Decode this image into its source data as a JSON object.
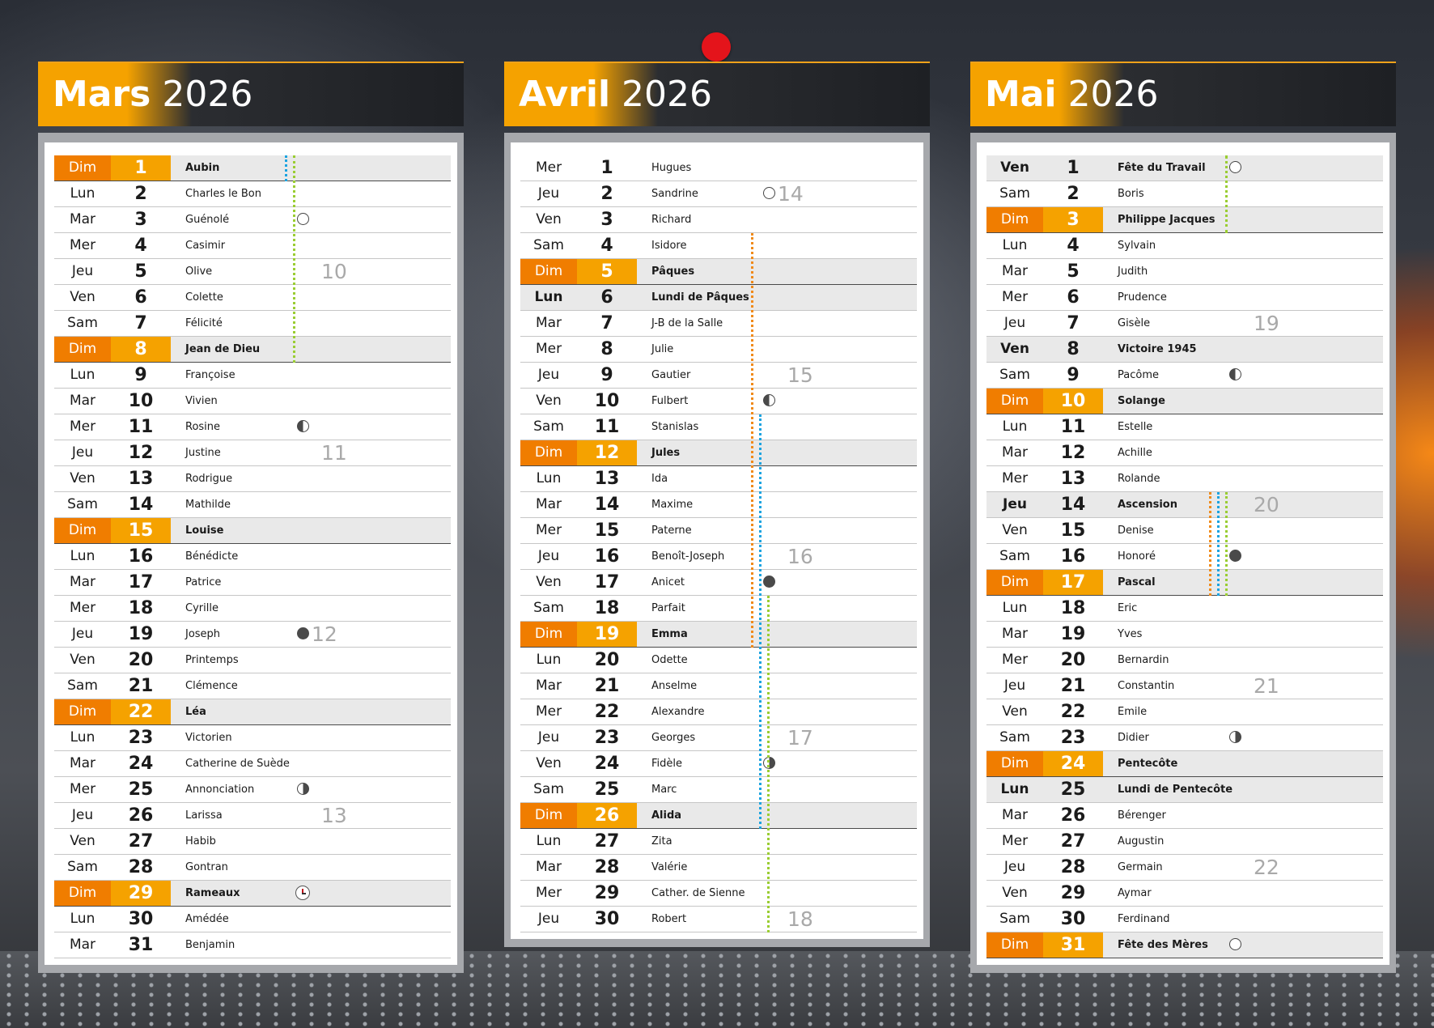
{
  "months": [
    {
      "name": "Mars",
      "year": "2026",
      "rows": [
        {
          "d": "Dim",
          "n": "1",
          "s": "Aubin",
          "sun": true
        },
        {
          "d": "Lun",
          "n": "2",
          "s": "Charles le Bon"
        },
        {
          "d": "Mar",
          "n": "3",
          "s": "Guénolé",
          "moon": "full"
        },
        {
          "d": "Mer",
          "n": "4",
          "s": "Casimir"
        },
        {
          "d": "Jeu",
          "n": "5",
          "s": "Olive",
          "week": "10"
        },
        {
          "d": "Ven",
          "n": "6",
          "s": "Colette"
        },
        {
          "d": "Sam",
          "n": "7",
          "s": "Félicité"
        },
        {
          "d": "Dim",
          "n": "8",
          "s": "Jean de Dieu",
          "sun": true
        },
        {
          "d": "Lun",
          "n": "9",
          "s": "Françoise"
        },
        {
          "d": "Mar",
          "n": "10",
          "s": "Vivien"
        },
        {
          "d": "Mer",
          "n": "11",
          "s": "Rosine",
          "moon": "lq"
        },
        {
          "d": "Jeu",
          "n": "12",
          "s": "Justine",
          "week": "11"
        },
        {
          "d": "Ven",
          "n": "13",
          "s": "Rodrigue"
        },
        {
          "d": "Sam",
          "n": "14",
          "s": "Mathilde"
        },
        {
          "d": "Dim",
          "n": "15",
          "s": "Louise",
          "sun": true
        },
        {
          "d": "Lun",
          "n": "16",
          "s": "Bénédicte"
        },
        {
          "d": "Mar",
          "n": "17",
          "s": "Patrice"
        },
        {
          "d": "Mer",
          "n": "18",
          "s": "Cyrille"
        },
        {
          "d": "Jeu",
          "n": "19",
          "s": "Joseph",
          "moon": "new",
          "week": "12"
        },
        {
          "d": "Ven",
          "n": "20",
          "s": "Printemps"
        },
        {
          "d": "Sam",
          "n": "21",
          "s": "Clémence"
        },
        {
          "d": "Dim",
          "n": "22",
          "s": "Léa",
          "sun": true
        },
        {
          "d": "Lun",
          "n": "23",
          "s": "Victorien"
        },
        {
          "d": "Mar",
          "n": "24",
          "s": "Catherine de Suède"
        },
        {
          "d": "Mer",
          "n": "25",
          "s": "Annonciation",
          "moon": "fq"
        },
        {
          "d": "Jeu",
          "n": "26",
          "s": "Larissa",
          "week": "13"
        },
        {
          "d": "Ven",
          "n": "27",
          "s": "Habib"
        },
        {
          "d": "Sam",
          "n": "28",
          "s": "Gontran"
        },
        {
          "d": "Dim",
          "n": "29",
          "s": "Rameaux",
          "sun": true,
          "clock": true
        },
        {
          "d": "Lun",
          "n": "30",
          "s": "Amédée"
        },
        {
          "d": "Mar",
          "n": "31",
          "s": "Benjamin"
        }
      ]
    },
    {
      "name": "Avril",
      "year": "2026",
      "rows": [
        {
          "d": "Mer",
          "n": "1",
          "s": "Hugues"
        },
        {
          "d": "Jeu",
          "n": "2",
          "s": "Sandrine",
          "moon": "full",
          "week": "14"
        },
        {
          "d": "Ven",
          "n": "3",
          "s": "Richard"
        },
        {
          "d": "Sam",
          "n": "4",
          "s": "Isidore"
        },
        {
          "d": "Dim",
          "n": "5",
          "s": "Pâques",
          "sun": true
        },
        {
          "d": "Lun",
          "n": "6",
          "s": "Lundi de Pâques",
          "hol": true
        },
        {
          "d": "Mar",
          "n": "7",
          "s": "J-B de la Salle"
        },
        {
          "d": "Mer",
          "n": "8",
          "s": "Julie"
        },
        {
          "d": "Jeu",
          "n": "9",
          "s": "Gautier",
          "week": "15"
        },
        {
          "d": "Ven",
          "n": "10",
          "s": "Fulbert",
          "moon": "lq"
        },
        {
          "d": "Sam",
          "n": "11",
          "s": "Stanislas"
        },
        {
          "d": "Dim",
          "n": "12",
          "s": "Jules",
          "sun": true
        },
        {
          "d": "Lun",
          "n": "13",
          "s": "Ida"
        },
        {
          "d": "Mar",
          "n": "14",
          "s": "Maxime"
        },
        {
          "d": "Mer",
          "n": "15",
          "s": "Paterne"
        },
        {
          "d": "Jeu",
          "n": "16",
          "s": "Benoît-Joseph",
          "week": "16"
        },
        {
          "d": "Ven",
          "n": "17",
          "s": "Anicet",
          "moon": "new"
        },
        {
          "d": "Sam",
          "n": "18",
          "s": "Parfait"
        },
        {
          "d": "Dim",
          "n": "19",
          "s": "Emma",
          "sun": true
        },
        {
          "d": "Lun",
          "n": "20",
          "s": "Odette"
        },
        {
          "d": "Mar",
          "n": "21",
          "s": "Anselme"
        },
        {
          "d": "Mer",
          "n": "22",
          "s": "Alexandre"
        },
        {
          "d": "Jeu",
          "n": "23",
          "s": "Georges",
          "week": "17"
        },
        {
          "d": "Ven",
          "n": "24",
          "s": "Fidèle",
          "moon": "fq"
        },
        {
          "d": "Sam",
          "n": "25",
          "s": "Marc"
        },
        {
          "d": "Dim",
          "n": "26",
          "s": "Alida",
          "sun": true
        },
        {
          "d": "Lun",
          "n": "27",
          "s": "Zita"
        },
        {
          "d": "Mar",
          "n": "28",
          "s": "Valérie"
        },
        {
          "d": "Mer",
          "n": "29",
          "s": "Cather. de Sienne"
        },
        {
          "d": "Jeu",
          "n": "30",
          "s": "Robert",
          "week": "18"
        }
      ]
    },
    {
      "name": "Mai",
      "year": "2026",
      "rows": [
        {
          "d": "Ven",
          "n": "1",
          "s": "Fête du Travail",
          "hol": true,
          "moon": "full"
        },
        {
          "d": "Sam",
          "n": "2",
          "s": "Boris"
        },
        {
          "d": "Dim",
          "n": "3",
          "s": "Philippe Jacques",
          "sun": true
        },
        {
          "d": "Lun",
          "n": "4",
          "s": "Sylvain"
        },
        {
          "d": "Mar",
          "n": "5",
          "s": "Judith"
        },
        {
          "d": "Mer",
          "n": "6",
          "s": "Prudence"
        },
        {
          "d": "Jeu",
          "n": "7",
          "s": "Gisèle",
          "week": "19"
        },
        {
          "d": "Ven",
          "n": "8",
          "s": "Victoire 1945",
          "hol": true
        },
        {
          "d": "Sam",
          "n": "9",
          "s": "Pacôme",
          "moon": "lq"
        },
        {
          "d": "Dim",
          "n": "10",
          "s": "Solange",
          "sun": true
        },
        {
          "d": "Lun",
          "n": "11",
          "s": "Estelle"
        },
        {
          "d": "Mar",
          "n": "12",
          "s": "Achille"
        },
        {
          "d": "Mer",
          "n": "13",
          "s": "Rolande"
        },
        {
          "d": "Jeu",
          "n": "14",
          "s": "Ascension",
          "hol": true,
          "week": "20"
        },
        {
          "d": "Ven",
          "n": "15",
          "s": "Denise"
        },
        {
          "d": "Sam",
          "n": "16",
          "s": "Honoré",
          "moon": "new"
        },
        {
          "d": "Dim",
          "n": "17",
          "s": "Pascal",
          "sun": true
        },
        {
          "d": "Lun",
          "n": "18",
          "s": "Eric"
        },
        {
          "d": "Mar",
          "n": "19",
          "s": "Yves"
        },
        {
          "d": "Mer",
          "n": "20",
          "s": "Bernardin"
        },
        {
          "d": "Jeu",
          "n": "21",
          "s": "Constantin",
          "week": "21"
        },
        {
          "d": "Ven",
          "n": "22",
          "s": "Emile"
        },
        {
          "d": "Sam",
          "n": "23",
          "s": "Didier",
          "moon": "fq"
        },
        {
          "d": "Dim",
          "n": "24",
          "s": "Pentecôte",
          "sun": true
        },
        {
          "d": "Lun",
          "n": "25",
          "s": "Lundi de Pentecôte",
          "hol": true
        },
        {
          "d": "Mar",
          "n": "26",
          "s": "Bérenger"
        },
        {
          "d": "Mer",
          "n": "27",
          "s": "Augustin"
        },
        {
          "d": "Jeu",
          "n": "28",
          "s": "Germain",
          "week": "22"
        },
        {
          "d": "Ven",
          "n": "29",
          "s": "Aymar"
        },
        {
          "d": "Sam",
          "n": "30",
          "s": "Ferdinand"
        },
        {
          "d": "Dim",
          "n": "31",
          "s": "Fête des Mères",
          "sun": true,
          "moon": "full"
        }
      ]
    }
  ],
  "colors": {
    "accent_orange": "#f07d00",
    "accent_yellow": "#f5a200",
    "vacation_blue": "#1aa3e0",
    "vacation_green": "#9acd32",
    "vacation_orange": "#f08a1a",
    "red_dot": "#e4141b"
  },
  "icons": {
    "moon_full": "full-moon-icon",
    "moon_new": "new-moon-icon",
    "moon_first_quarter": "first-quarter-moon-icon",
    "moon_last_quarter": "last-quarter-moon-icon",
    "daylight_saving": "clock-change-icon"
  }
}
